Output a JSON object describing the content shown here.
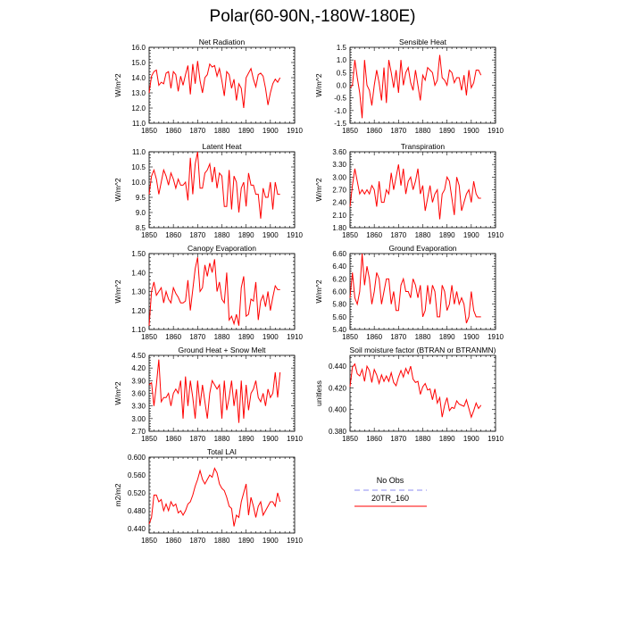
{
  "page": {
    "title": "Polar(60-90N,-180W-180E)"
  },
  "legend": {
    "title": "No Obs",
    "series_label": "20TR_160",
    "obs_color": "#8c8cf0",
    "model_color": "#ff0000"
  },
  "chart_data": [
    {
      "type": "line",
      "title": "Net Radiation",
      "ylabel": "W/m^2",
      "xlim": [
        1850,
        1910
      ],
      "xticks": [
        1850,
        1860,
        1870,
        1880,
        1890,
        1900,
        1910
      ],
      "ylim": [
        11.0,
        16.0
      ],
      "yticks": [
        "11.0",
        "12.0",
        "13.0",
        "14.0",
        "15.0",
        "16.0"
      ],
      "x_start": 1850,
      "series": [
        {
          "name": "20TR_160",
          "color": "#ff0000",
          "values": [
            13.0,
            14.1,
            14.4,
            14.5,
            13.5,
            13.7,
            13.6,
            14.3,
            14.4,
            13.3,
            14.4,
            14.2,
            13.1,
            14.1,
            13.5,
            14.2,
            14.8,
            12.9,
            14.9,
            13.6,
            15.1,
            13.8,
            13.0,
            14.0,
            14.2,
            14.9,
            14.7,
            14.8,
            14.1,
            14.6,
            13.8,
            12.8,
            14.4,
            14.2,
            13.3,
            13.9,
            12.5,
            13.6,
            13.3,
            12.0,
            14.0,
            14.3,
            14.6,
            13.9,
            13.4,
            14.2,
            14.3,
            14.1,
            13.3,
            12.2,
            13.0,
            13.6,
            13.9,
            13.7,
            14.0
          ]
        }
      ]
    },
    {
      "type": "line",
      "title": "Sensible Heat",
      "ylabel": "W/m^2",
      "xlim": [
        1850,
        1910
      ],
      "xticks": [
        1850,
        1860,
        1870,
        1880,
        1890,
        1900,
        1910
      ],
      "ylim": [
        -1.5,
        1.5
      ],
      "yticks": [
        "-1.5",
        "-1.0",
        "-0.5",
        "0.0",
        "0.5",
        "1.0",
        "1.5"
      ],
      "x_start": 1850,
      "series": [
        {
          "name": "20TR_160",
          "color": "#ff0000",
          "values": [
            -0.1,
            0.0,
            1.0,
            0.3,
            -0.3,
            -1.3,
            1.0,
            0.0,
            -0.2,
            -0.8,
            0.0,
            0.6,
            0.1,
            -0.6,
            0.7,
            -0.7,
            1.0,
            0.5,
            -0.1,
            0.6,
            -0.3,
            1.0,
            0.0,
            0.5,
            0.7,
            0.1,
            -0.2,
            0.6,
            0.0,
            -0.6,
            0.4,
            0.2,
            0.7,
            0.6,
            0.5,
            0.0,
            0.2,
            1.2,
            0.3,
            0.2,
            0.0,
            0.6,
            0.5,
            0.1,
            0.3,
            0.3,
            -0.2,
            0.4,
            -0.4,
            0.6,
            -0.1,
            0.1,
            0.6,
            0.6,
            0.4
          ]
        }
      ]
    },
    {
      "type": "line",
      "title": "Latent Heat",
      "ylabel": "W/m^2",
      "xlim": [
        1850,
        1910
      ],
      "xticks": [
        1850,
        1860,
        1870,
        1880,
        1890,
        1900,
        1910
      ],
      "ylim": [
        8.5,
        11.0
      ],
      "yticks": [
        "8.5",
        "9.0",
        "9.5",
        "10.0",
        "10.5",
        "11.0"
      ],
      "x_start": 1850,
      "series": [
        {
          "name": "20TR_160",
          "color": "#ff0000",
          "values": [
            9.6,
            10.2,
            10.4,
            10.1,
            9.6,
            10.0,
            10.4,
            10.2,
            9.9,
            10.3,
            10.1,
            9.8,
            10.1,
            9.9,
            9.9,
            10.0,
            9.4,
            10.8,
            9.6,
            10.6,
            11.0,
            9.8,
            9.8,
            10.3,
            10.4,
            10.6,
            10.0,
            10.5,
            9.8,
            10.3,
            10.2,
            9.2,
            9.2,
            10.4,
            9.1,
            10.2,
            10.0,
            9.0,
            9.8,
            10.0,
            9.2,
            10.3,
            9.9,
            9.9,
            9.6,
            9.6,
            8.8,
            9.8,
            9.5,
            9.5,
            10.0,
            9.1,
            10.0,
            9.6,
            9.6
          ]
        }
      ]
    },
    {
      "type": "line",
      "title": "Transpiration",
      "ylabel": "W/m^2",
      "xlim": [
        1850,
        1910
      ],
      "xticks": [
        1850,
        1860,
        1870,
        1880,
        1890,
        1900,
        1910
      ],
      "ylim": [
        1.8,
        3.6
      ],
      "yticks": [
        "1.80",
        "2.10",
        "2.40",
        "2.70",
        "3.00",
        "3.30",
        "3.60"
      ],
      "x_start": 1850,
      "series": [
        {
          "name": "20TR_160",
          "color": "#ff0000",
          "values": [
            2.3,
            2.8,
            3.2,
            2.9,
            2.6,
            2.7,
            2.6,
            2.7,
            2.6,
            2.8,
            2.7,
            2.3,
            2.9,
            2.4,
            2.4,
            2.7,
            2.6,
            3.1,
            2.7,
            3.0,
            3.3,
            2.8,
            3.2,
            2.6,
            2.9,
            3.0,
            2.7,
            2.9,
            3.2,
            2.6,
            2.8,
            2.2,
            2.5,
            2.8,
            2.4,
            2.6,
            2.7,
            2.0,
            2.6,
            2.7,
            3.0,
            2.9,
            2.5,
            2.1,
            3.0,
            2.8,
            2.2,
            2.4,
            2.6,
            2.7,
            2.4,
            2.9,
            2.6,
            2.5,
            2.5
          ]
        }
      ]
    },
    {
      "type": "line",
      "title": "Canopy Evaporation",
      "ylabel": "W/m^2",
      "xlim": [
        1850,
        1910
      ],
      "xticks": [
        1850,
        1860,
        1870,
        1880,
        1890,
        1900,
        1910
      ],
      "ylim": [
        1.1,
        1.5
      ],
      "yticks": [
        "1.10",
        "1.20",
        "1.30",
        "1.40",
        "1.50"
      ],
      "x_start": 1850,
      "series": [
        {
          "name": "20TR_160",
          "color": "#ff0000",
          "values": [
            1.12,
            1.3,
            1.35,
            1.28,
            1.3,
            1.32,
            1.24,
            1.3,
            1.26,
            1.24,
            1.32,
            1.29,
            1.27,
            1.24,
            1.24,
            1.25,
            1.36,
            1.2,
            1.31,
            1.42,
            1.48,
            1.3,
            1.32,
            1.44,
            1.38,
            1.45,
            1.4,
            1.47,
            1.3,
            1.35,
            1.26,
            1.24,
            1.4,
            1.15,
            1.17,
            1.13,
            1.18,
            1.12,
            1.32,
            1.38,
            1.17,
            1.18,
            1.26,
            1.25,
            1.35,
            1.15,
            1.25,
            1.28,
            1.22,
            1.3,
            1.2,
            1.27,
            1.33,
            1.31,
            1.31
          ]
        }
      ]
    },
    {
      "type": "line",
      "title": "Ground Evaporation",
      "ylabel": "W/m^2",
      "xlim": [
        1850,
        1910
      ],
      "xticks": [
        1850,
        1860,
        1870,
        1880,
        1890,
        1900,
        1910
      ],
      "ylim": [
        5.4,
        6.6
      ],
      "yticks": [
        "5.40",
        "5.60",
        "5.80",
        "6.00",
        "6.20",
        "6.40",
        "6.60"
      ],
      "x_start": 1850,
      "series": [
        {
          "name": "20TR_160",
          "color": "#ff0000",
          "values": [
            5.9,
            6.3,
            5.9,
            5.8,
            6.0,
            6.6,
            6.1,
            6.4,
            6.2,
            5.8,
            6.0,
            6.3,
            6.2,
            5.8,
            6.0,
            6.2,
            6.2,
            5.8,
            6.0,
            5.7,
            5.7,
            6.1,
            6.2,
            6.0,
            6.0,
            5.9,
            6.2,
            6.1,
            5.9,
            6.1,
            5.6,
            5.7,
            6.1,
            5.8,
            6.1,
            6.0,
            5.6,
            5.6,
            6.1,
            6.0,
            5.7,
            5.8,
            6.1,
            5.8,
            6.0,
            5.8,
            5.9,
            5.8,
            5.5,
            5.6,
            6.0,
            5.7,
            5.6,
            5.6,
            5.6
          ]
        }
      ]
    },
    {
      "type": "line",
      "title": "Ground Heat + Snow Melt",
      "ylabel": "W/m^2",
      "xlim": [
        1850,
        1910
      ],
      "xticks": [
        1850,
        1860,
        1870,
        1880,
        1890,
        1900,
        1910
      ],
      "ylim": [
        2.7,
        4.5
      ],
      "yticks": [
        "2.70",
        "3.00",
        "3.30",
        "3.60",
        "3.90",
        "4.20",
        "4.50"
      ],
      "x_start": 1850,
      "series": [
        {
          "name": "20TR_160",
          "color": "#ff0000",
          "values": [
            3.8,
            3.85,
            3.3,
            3.8,
            4.4,
            3.4,
            3.5,
            3.5,
            3.6,
            3.3,
            3.6,
            3.7,
            3.6,
            3.9,
            3.0,
            4.0,
            3.3,
            3.9,
            3.5,
            3.0,
            3.9,
            3.3,
            3.8,
            3.4,
            3.0,
            3.6,
            3.9,
            3.8,
            3.7,
            3.8,
            3.0,
            3.9,
            3.2,
            3.5,
            3.9,
            3.3,
            3.7,
            2.9,
            3.9,
            3.0,
            3.8,
            3.2,
            3.6,
            3.7,
            3.9,
            3.5,
            3.4,
            3.6,
            3.3,
            3.7,
            3.5,
            3.6,
            4.1,
            3.5,
            4.1
          ]
        }
      ]
    },
    {
      "type": "line",
      "title": "Soil moisture factor (BTRAN or BTRANMN)",
      "ylabel": "unitless",
      "xlim": [
        1850,
        1910
      ],
      "xticks": [
        1850,
        1860,
        1870,
        1880,
        1890,
        1900,
        1910
      ],
      "ylim": [
        0.38,
        0.45
      ],
      "yticks": [
        "0.380",
        "0.400",
        "0.420",
        "0.440"
      ],
      "x_start": 1850,
      "series": [
        {
          "name": "20TR_160",
          "color": "#ff0000",
          "values": [
            0.421,
            0.439,
            0.442,
            0.433,
            0.431,
            0.437,
            0.426,
            0.44,
            0.436,
            0.425,
            0.437,
            0.432,
            0.424,
            0.432,
            0.426,
            0.431,
            0.426,
            0.434,
            0.425,
            0.422,
            0.43,
            0.436,
            0.43,
            0.438,
            0.433,
            0.44,
            0.428,
            0.425,
            0.426,
            0.414,
            0.421,
            0.424,
            0.418,
            0.419,
            0.409,
            0.419,
            0.406,
            0.411,
            0.393,
            0.404,
            0.411,
            0.399,
            0.402,
            0.401,
            0.408,
            0.405,
            0.404,
            0.403,
            0.409,
            0.401,
            0.393,
            0.399,
            0.406,
            0.401,
            0.404
          ]
        }
      ]
    },
    {
      "type": "line",
      "title": "Total LAI",
      "ylabel": "m2/m2",
      "xlim": [
        1850,
        1910
      ],
      "xticks": [
        1850,
        1860,
        1870,
        1880,
        1890,
        1900,
        1910
      ],
      "ylim": [
        0.43,
        0.6
      ],
      "yticks": [
        "0.440",
        "0.480",
        "0.520",
        "0.560",
        "0.600"
      ],
      "x_start": 1850,
      "series": [
        {
          "name": "20TR_160",
          "color": "#ff0000",
          "values": [
            0.45,
            0.465,
            0.515,
            0.515,
            0.5,
            0.505,
            0.48,
            0.495,
            0.48,
            0.5,
            0.49,
            0.495,
            0.475,
            0.48,
            0.47,
            0.48,
            0.495,
            0.5,
            0.515,
            0.535,
            0.55,
            0.57,
            0.55,
            0.54,
            0.55,
            0.56,
            0.555,
            0.575,
            0.565,
            0.54,
            0.53,
            0.525,
            0.51,
            0.49,
            0.485,
            0.445,
            0.47,
            0.465,
            0.5,
            0.52,
            0.54,
            0.47,
            0.51,
            0.49,
            0.465,
            0.49,
            0.5,
            0.47,
            0.48,
            0.49,
            0.5,
            0.5,
            0.49,
            0.52,
            0.5
          ]
        }
      ]
    }
  ]
}
